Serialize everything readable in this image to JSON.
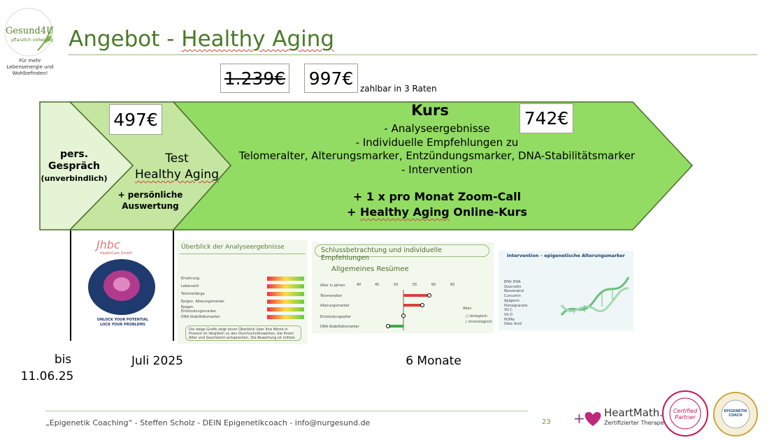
{
  "slide": {
    "title_prefix": "Angebot - ",
    "title_main": "Healthy Aging",
    "logo": {
      "brand": "Gesund4U",
      "slogan": "pflanzlich vollwertig",
      "tagline": "Für mehr Lebensenergie und Wohlbefinden!"
    },
    "prices": {
      "old_price": "1.239€",
      "new_price": "997€",
      "installments": "zahlbar in 3 Raten",
      "test_price": "497€",
      "kurs_price": "742€"
    },
    "steps": {
      "pers_line1": "pers.",
      "pers_line2": "Gespräch",
      "pers_line3": "(unverbindlich)",
      "test_line1": "Test",
      "test_line2": "Healthy Aging",
      "auswertung_line1": "+ persönliche",
      "auswertung_line2": "Auswertung",
      "kurs_title": "Kurs",
      "kurs_items": [
        "-     Analyseergebnisse",
        "-     Individuelle Empfehlungen zu",
        "Telomeralter, Alterungsmarker, Entzündungsmarker, DNA-Stabilitätsmarker",
        "-     Intervention"
      ],
      "kurs_extra_1": "+ 1 x pro Monat Zoom-Call",
      "kurs_extra_2_prefix": "+ ",
      "kurs_extra_2_main": "Healthy Aging",
      "kurs_extra_2_suffix": " Online-Kurs"
    },
    "timeline": {
      "bis": "bis",
      "date": "11.06.25",
      "juli": "Juli 2025",
      "monate": "6 Monate"
    },
    "thumbs": {
      "book_brand": "Jhbc",
      "book_sub": "HealthCare GmbH",
      "book_cap1": "UNLOCK YOUR POTENTIAL",
      "book_cap2": "LOCK YOUR PROBLEMS",
      "overview_title": "Überblick der Analyseergebnisse",
      "overview_rows": [
        "Ernährung",
        "Lebensstil",
        "Telomerlänge",
        "Epigen. Alterungsmarker",
        "Epigen. Entzündungsmarker",
        "DNA-Stabilitätsmarker"
      ],
      "overview_note": "Die obige Grafik zeigt einen Überblick über Ihre Werte in Prozent im Vergleich zu den Durchschnittswerten, die Ihrem Alter und Geschlecht entsprechen. Die Bewertung ist mittels Ampelsystem dargestellt.",
      "summary_title": "Schlussbetrachtung und individuelle Empfehlungen",
      "summary_sub": "Allgemeines Resümee",
      "summary_axis": [
        "40",
        "45",
        "50",
        "55",
        "60",
        "65"
      ],
      "summary_axis_label": "Alter in Jahren",
      "summary_rows": [
        "Telomeralter",
        "Alterungsmarker",
        "Entzündungsalter",
        "DNA-Stabilitätsmarker"
      ],
      "summary_legend_title": "Alter:",
      "summary_legend_1": "biologisch",
      "summary_legend_2": "chronologisch",
      "intervention_title": "Intervention – epigenetische Alterungsmarker",
      "intervention_items": [
        "EPA/ DHA",
        "Quercetin",
        "Resveratrol",
        "Curcumin",
        "Apigenin",
        "Pomegranate",
        "Vit C",
        "Vit D",
        "PUFAs",
        "Oleic Acid"
      ]
    },
    "footer": {
      "text": "„Epigenetik Coaching“ - Steffen Scholz - DEIN Epigenetikcoach - info@nurgesund.de",
      "page": "23",
      "heartmath_name": "HeartMath.",
      "heartmath_sub": "Zertifizierter Therapeut",
      "badge1": "Certified Partner",
      "badge2": "EPIGENETIK COACH"
    },
    "colors": {
      "title": "#4a7a2a",
      "light_green": "#e4f4d4",
      "mid_green": "#c4e6a0",
      "main_green": "#92dc64",
      "border_green": "#4a6b2a"
    }
  }
}
